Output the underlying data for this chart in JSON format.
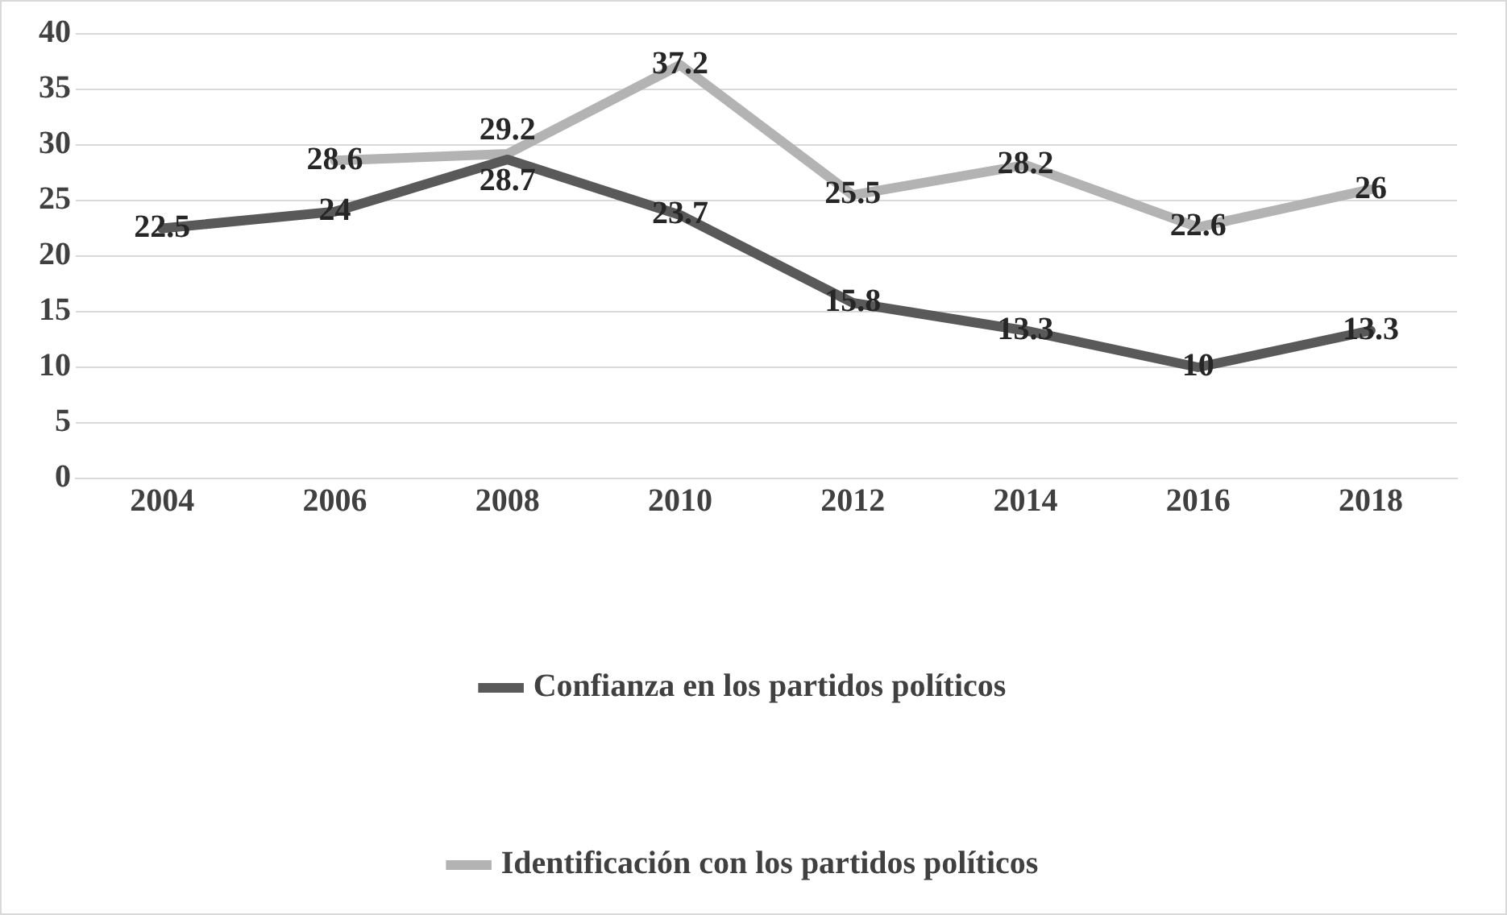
{
  "chart_data": {
    "type": "line",
    "categories": [
      "2004",
      "2006",
      "2008",
      "2010",
      "2012",
      "2014",
      "2016",
      "2018"
    ],
    "series": [
      {
        "name": "Confianza en los partidos políticos",
        "color": "#595959",
        "values": [
          22.5,
          24,
          28.7,
          23.7,
          15.8,
          13.3,
          10,
          13.3
        ]
      },
      {
        "name": "Identificación con los partidos políticos",
        "color": "#b3b3b3",
        "values": [
          null,
          28.6,
          29.2,
          37.2,
          25.5,
          28.2,
          22.6,
          26
        ]
      }
    ],
    "ylim": [
      0,
      40
    ],
    "yticks": [
      0,
      5,
      10,
      15,
      20,
      25,
      30,
      35,
      40
    ],
    "grid": "y",
    "legend": "bottom",
    "data_labels": true,
    "marker": "none",
    "line_style": "solid"
  }
}
